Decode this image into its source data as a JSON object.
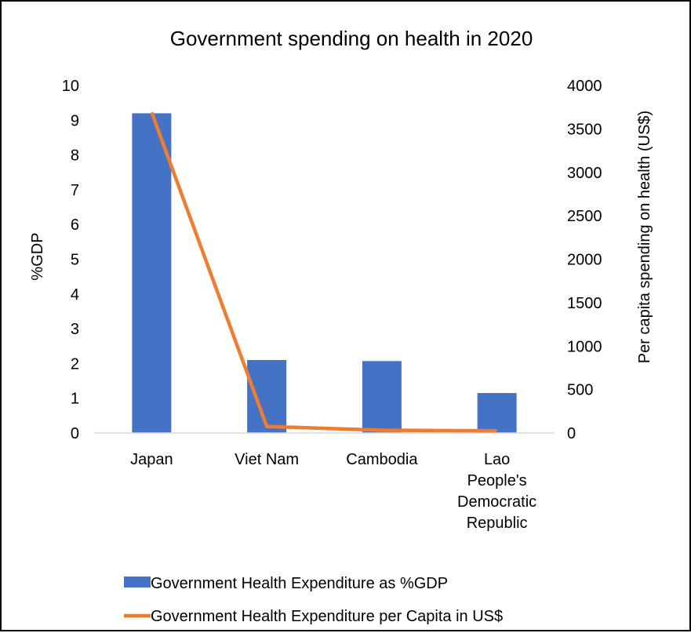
{
  "chart_data": {
    "type": "bar",
    "title": "Government spending on health in 2020",
    "categories": [
      "Japan",
      "Viet Nam",
      "Cambodia",
      "Lao People's Democratic Republic"
    ],
    "category_label_lines": [
      [
        "Japan"
      ],
      [
        "Viet Nam"
      ],
      [
        "Cambodia"
      ],
      [
        "Lao",
        "People's",
        "Democratic",
        "Republic"
      ]
    ],
    "ylabel": "%GDP",
    "y2label": "Per capita spending on health (US$)",
    "ylim": [
      0,
      10
    ],
    "y2lim": [
      0,
      4000
    ],
    "yticks": [
      "0",
      "1",
      "2",
      "3",
      "4",
      "5",
      "6",
      "7",
      "8",
      "9",
      "10"
    ],
    "y2ticks": [
      "0",
      "500",
      "1000",
      "1500",
      "2000",
      "2500",
      "3000",
      "3500",
      "4000"
    ],
    "grid": false,
    "legend_position": "bottom",
    "series": [
      {
        "name": "Government Health Expenditure as %GDP",
        "type": "bar",
        "axis": "left",
        "color": "#4472C4",
        "values": [
          9.2,
          2.1,
          2.07,
          1.15
        ]
      },
      {
        "name": "Government Health Expenditure per Capita in US$",
        "type": "line",
        "axis": "right",
        "color": "#ED7D31",
        "values": [
          3690,
          75,
          32,
          25
        ]
      }
    ]
  }
}
